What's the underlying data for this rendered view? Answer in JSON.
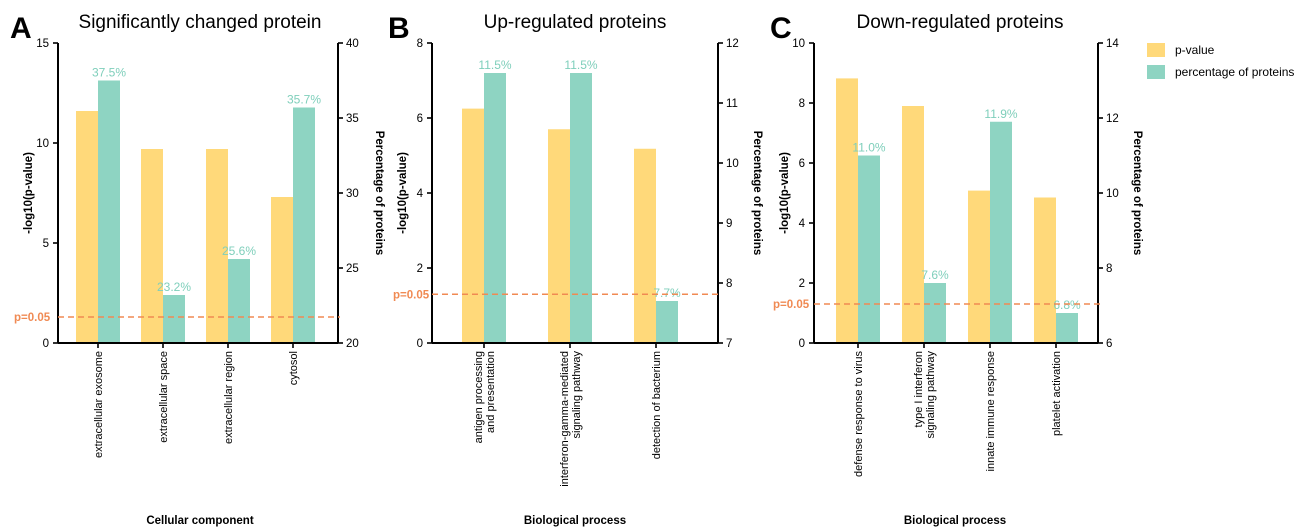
{
  "legend": {
    "items": [
      {
        "label": "p-value",
        "color": "#ffd97a"
      },
      {
        "label": "percentage of proteins",
        "color": "#8ed4c2"
      }
    ]
  },
  "significance": {
    "label": "p=0.05",
    "color": "#f08a53"
  },
  "chart_data": [
    {
      "type": "bar",
      "letter": "A",
      "title": "Significantly changed protein",
      "xlabel": "Cellular component",
      "ylabel_left": "-log10(p-value)",
      "ylabel_right": "Percentage of proteins",
      "ylim_left": [
        0,
        15
      ],
      "yticks_left": [
        0,
        5,
        10,
        15
      ],
      "ylim_right": [
        20,
        40
      ],
      "yticks_right": [
        20,
        25,
        30,
        35,
        40
      ],
      "threshold_left": 1.3,
      "categories": [
        "extracellular exosome",
        "extracellular space",
        "extracellular region",
        "cytosol"
      ],
      "series": [
        {
          "name": "p-value",
          "axis": "left",
          "values": [
            11.6,
            9.7,
            9.7,
            7.3
          ]
        },
        {
          "name": "percentage of proteins",
          "axis": "right",
          "values": [
            37.5,
            23.2,
            25.6,
            35.7
          ],
          "labels": [
            "37.5%",
            "23.2%",
            "25.6%",
            "35.7%"
          ]
        }
      ]
    },
    {
      "type": "bar",
      "letter": "B",
      "title": "Up-regulated proteins",
      "xlabel": "Biological process",
      "ylabel_left": "-log10(p-value)",
      "ylabel_right": "Percentage of proteins",
      "ylim_left": [
        0,
        8
      ],
      "yticks_left": [
        0,
        2,
        4,
        6,
        8
      ],
      "ylim_right": [
        7,
        12
      ],
      "yticks_right": [
        7,
        8,
        9,
        10,
        11,
        12
      ],
      "threshold_left": 1.3,
      "categories": [
        "antigen processing\nand presentation",
        "interferon-gamma-mediated\nsignaling pathway",
        "detection of bacterium"
      ],
      "series": [
        {
          "name": "p-value",
          "axis": "left",
          "values": [
            6.25,
            5.7,
            5.18
          ]
        },
        {
          "name": "percentage of proteins",
          "axis": "right",
          "values": [
            11.5,
            11.5,
            7.7
          ],
          "labels": [
            "11.5%",
            "11.5%",
            "7.7%"
          ]
        }
      ]
    },
    {
      "type": "bar",
      "letter": "C",
      "title": "Down-regulated proteins",
      "xlabel": "Biological process",
      "ylabel_left": "-log10(p-value)",
      "ylabel_right": "Percentage of proteins",
      "ylim_left": [
        0,
        10
      ],
      "yticks_left": [
        0,
        2,
        4,
        6,
        8,
        10
      ],
      "ylim_right": [
        6,
        14
      ],
      "yticks_right": [
        6,
        8,
        10,
        12,
        14
      ],
      "threshold_left": 1.3,
      "categories": [
        "defense response to virus",
        "type I interferon\nsignaling pathway",
        "innate immune response",
        "platelet activation"
      ],
      "series": [
        {
          "name": "p-value",
          "axis": "left",
          "values": [
            8.82,
            7.9,
            5.08,
            4.85
          ]
        },
        {
          "name": "percentage of proteins",
          "axis": "right",
          "values": [
            11.0,
            7.6,
            11.9,
            6.8
          ],
          "labels": [
            "11.0%",
            "7.6%",
            "11.9%",
            "6.8%"
          ]
        }
      ]
    }
  ]
}
